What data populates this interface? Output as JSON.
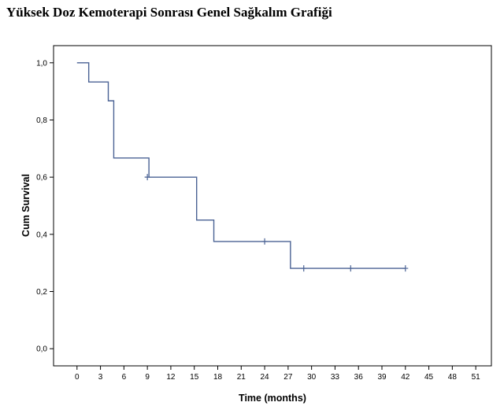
{
  "title": "Yüksek Doz Kemoterapi Sonrası Genel Sağkalım Grafiği",
  "chart_data": {
    "type": "line",
    "step": true,
    "title": "Yüksek Doz Kemoterapi Sonrası Genel Sağkalım Grafiği",
    "xlabel": "Time (months)",
    "ylabel": "Cum Survival",
    "xlim": [
      -3,
      53
    ],
    "ylim": [
      -0.06,
      1.06
    ],
    "x_ticks": [
      0,
      3,
      6,
      9,
      12,
      15,
      18,
      21,
      24,
      27,
      30,
      33,
      36,
      39,
      42,
      45,
      48,
      51
    ],
    "x_tick_labels": [
      "0",
      "3",
      "6",
      "9",
      "12",
      "15",
      "18",
      "21",
      "24",
      "27",
      "30",
      "33",
      "36",
      "39",
      "42",
      "45",
      "48",
      "51"
    ],
    "y_ticks": [
      0.0,
      0.2,
      0.4,
      0.6,
      0.8,
      1.0
    ],
    "y_tick_labels": [
      "0,0",
      "0,2",
      "0,4",
      "0,6",
      "0,8",
      "1,0"
    ],
    "grid": false,
    "line_color": "#4a6294",
    "series": [
      {
        "steps": [
          {
            "x": 0,
            "y": 1.0
          },
          {
            "x": 1.5,
            "y": 0.933
          },
          {
            "x": 4,
            "y": 0.867
          },
          {
            "x": 4.7,
            "y": 0.667
          },
          {
            "x": 9.2,
            "y": 0.6
          },
          {
            "x": 15.3,
            "y": 0.45
          },
          {
            "x": 17.5,
            "y": 0.375
          },
          {
            "x": 27.3,
            "y": 0.281
          }
        ],
        "end_x": 42,
        "censored": [
          {
            "x": 9,
            "y": 0.6
          },
          {
            "x": 24,
            "y": 0.375
          },
          {
            "x": 29,
            "y": 0.281
          },
          {
            "x": 35,
            "y": 0.281
          },
          {
            "x": 42,
            "y": 0.281
          }
        ]
      }
    ]
  }
}
